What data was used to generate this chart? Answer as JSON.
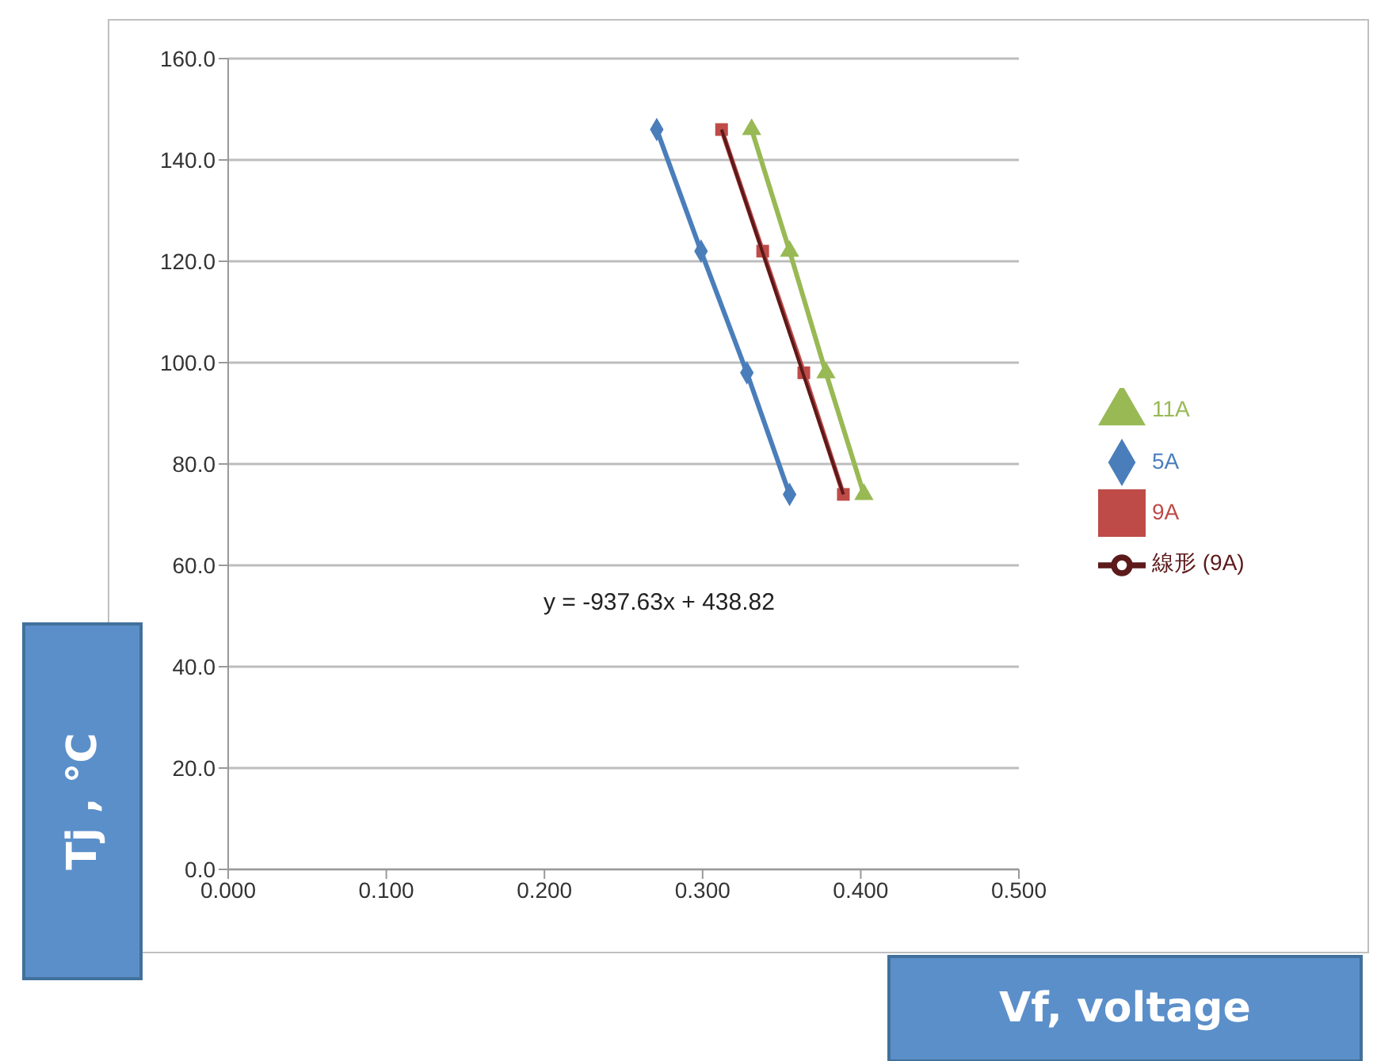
{
  "chart_data": {
    "type": "line",
    "xlabel": "Vf, voltage",
    "ylabel": "Tj , °C",
    "xlim": [
      0,
      0.5
    ],
    "xticks": [
      {
        "value": 0,
        "label": "0.000"
      },
      {
        "value": 0.1,
        "label": "0.100"
      },
      {
        "value": 0.2,
        "label": "0.200"
      },
      {
        "value": 0.3,
        "label": "0.300"
      },
      {
        "value": 0.4,
        "label": "0.400"
      },
      {
        "value": 0.5,
        "label": "0.500"
      }
    ],
    "ylim": [
      0,
      160
    ],
    "yticks": [
      {
        "value": 0,
        "label": "0.0"
      },
      {
        "value": 20,
        "label": "20.0"
      },
      {
        "value": 40,
        "label": "40.0"
      },
      {
        "value": 60,
        "label": "60.0"
      },
      {
        "value": 80,
        "label": "80.0"
      },
      {
        "value": 100,
        "label": "100.0"
      },
      {
        "value": 120,
        "label": "120.0"
      },
      {
        "value": 140,
        "label": "140.0"
      },
      {
        "value": 160,
        "label": "160.0"
      }
    ],
    "grid": "y",
    "legend": "right",
    "annotations": [
      "y = -937.63x + 438.82"
    ],
    "series": [
      {
        "name": "5A",
        "color": "#4a7ebb",
        "marker": "diamond",
        "x": [
          0.271,
          0.299,
          0.328,
          0.355
        ],
        "values": [
          146,
          122,
          98,
          74
        ]
      },
      {
        "name": "9A",
        "color": "#be4b48",
        "marker": "square",
        "x": [
          0.312,
          0.338,
          0.364,
          0.389
        ],
        "values": [
          146,
          122,
          98,
          74
        ]
      },
      {
        "name": "11A",
        "color": "#98b954",
        "marker": "triangle",
        "x": [
          0.331,
          0.355,
          0.378,
          0.402
        ],
        "values": [
          146,
          122,
          98,
          74
        ]
      },
      {
        "name": "線形 (9A)",
        "type": "line",
        "color": "#5c1a1a",
        "marker": "none",
        "x": [
          0.312,
          0.389
        ],
        "values": [
          146,
          74
        ]
      }
    ]
  }
}
